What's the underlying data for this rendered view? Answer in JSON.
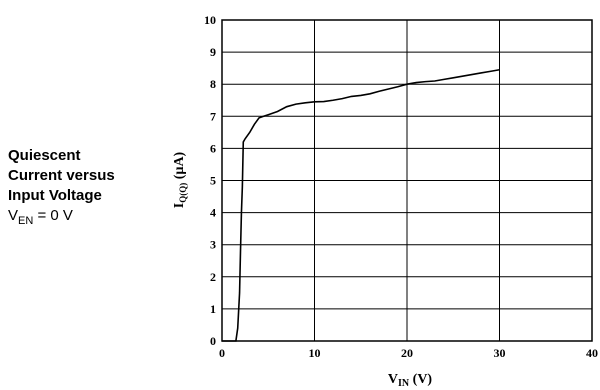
{
  "side_title": {
    "line1": "Quiescent",
    "line2": "Current versus",
    "line3": "Input Voltage",
    "condition_main": "V",
    "condition_sub": "EN",
    "condition_rest": " = 0 V"
  },
  "chart_data": {
    "type": "line",
    "title": "Quiescent Current versus Input Voltage",
    "xlabel_main": "V",
    "xlabel_sub": "IN",
    "xlabel_unit": " (V)",
    "ylabel_main": "I",
    "ylabel_sub": "Q(Q)",
    "ylabel_unit": " (µA)",
    "xlim": [
      0,
      40
    ],
    "ylim": [
      0,
      10
    ],
    "x_ticks": [
      "0",
      "10",
      "20",
      "30",
      "40"
    ],
    "y_ticks": [
      "0",
      "1",
      "2",
      "3",
      "4",
      "5",
      "6",
      "7",
      "8",
      "9",
      "10"
    ],
    "grid": true,
    "series": [
      {
        "color": "#000000",
        "x": [
          0,
          1.5,
          1.7,
          1.9,
          2.0,
          2.1,
          2.2,
          2.25,
          2.3,
          2.5,
          3.0,
          3.5,
          4.0,
          4.5,
          5.0,
          6.0,
          7.0,
          8.0,
          9.0,
          10.0,
          11.0,
          12.0,
          13.0,
          14.0,
          15.0,
          16.0,
          17.0,
          18.0,
          19.0,
          20.0,
          21.0,
          22.0,
          23.0,
          24.0,
          25.0,
          26.0,
          27.0,
          28.0,
          29.0,
          30.0
        ],
        "y": [
          0,
          0,
          0.4,
          1.5,
          2.8,
          4.0,
          4.8,
          5.5,
          6.2,
          6.3,
          6.5,
          6.75,
          6.95,
          7.0,
          7.05,
          7.15,
          7.3,
          7.38,
          7.42,
          7.45,
          7.46,
          7.5,
          7.55,
          7.62,
          7.65,
          7.7,
          7.78,
          7.85,
          7.92,
          8.0,
          8.05,
          8.08,
          8.1,
          8.15,
          8.2,
          8.25,
          8.3,
          8.35,
          8.4,
          8.45
        ]
      }
    ]
  }
}
